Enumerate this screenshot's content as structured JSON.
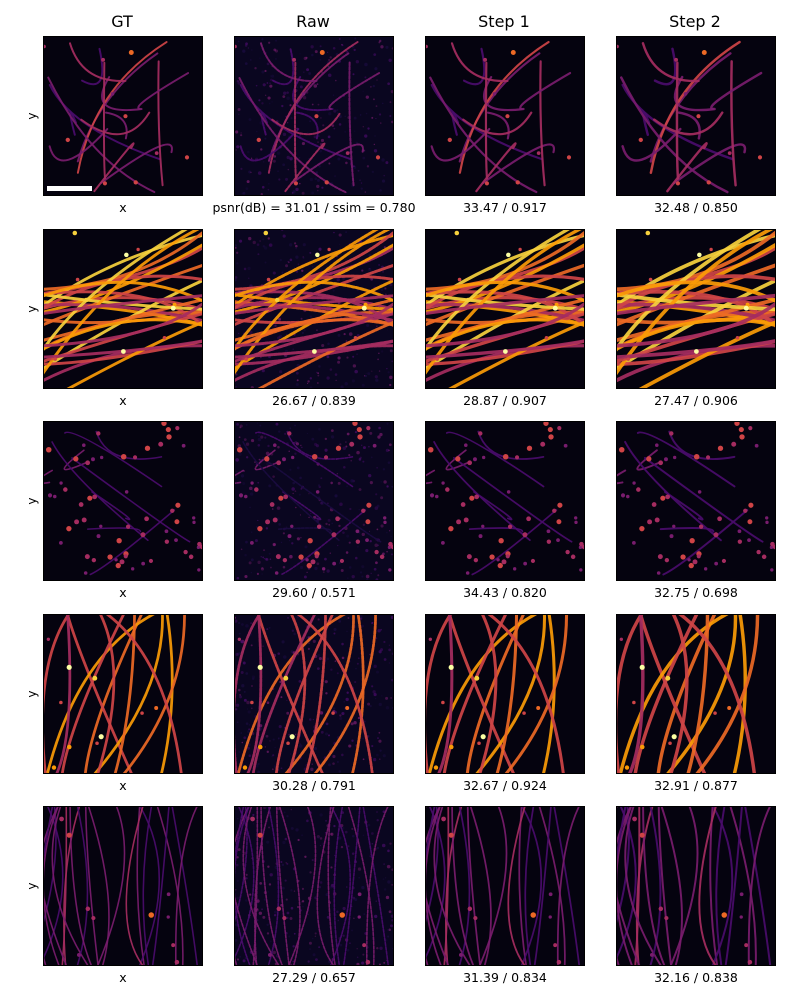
{
  "columns": [
    "GT",
    "Raw",
    "Step 1",
    "Step 2"
  ],
  "axis": {
    "xlabel": "x",
    "ylabel": "y"
  },
  "metric_prefix": "psnr(dB) = ",
  "metric_mid": " / ssim = ",
  "colormap": [
    "#000004",
    "#1b0c41",
    "#4a0c6b",
    "#781c6d",
    "#a52c60",
    "#cf4446",
    "#ed6925",
    "#fb9b06",
    "#f7d13d",
    "#fcffa4"
  ],
  "rows": [
    {
      "structure": "sparse filaments",
      "raw": {
        "psnr": "31.01",
        "ssim": "0.780"
      },
      "step1": {
        "psnr": "33.47",
        "ssim": "0.917"
      },
      "step2": {
        "psnr": "32.48",
        "ssim": "0.850"
      }
    },
    {
      "structure": "dense bright filament bundle",
      "raw": {
        "psnr": "26.67",
        "ssim": "0.839"
      },
      "step1": {
        "psnr": "28.87",
        "ssim": "0.907"
      },
      "step2": {
        "psnr": "27.47",
        "ssim": "0.906"
      }
    },
    {
      "structure": "sparse dim puncta",
      "raw": {
        "psnr": "29.60",
        "ssim": "0.571"
      },
      "step1": {
        "psnr": "34.43",
        "ssim": "0.820"
      },
      "step2": {
        "psnr": "32.75",
        "ssim": "0.698"
      }
    },
    {
      "structure": "curved filaments with dark gap",
      "raw": {
        "psnr": "30.28",
        "ssim": "0.791"
      },
      "step1": {
        "psnr": "32.67",
        "ssim": "0.924"
      },
      "step2": {
        "psnr": "32.91",
        "ssim": "0.877"
      }
    },
    {
      "structure": "dim filament mesh",
      "raw": {
        "psnr": "27.29",
        "ssim": "0.657"
      },
      "step1": {
        "psnr": "31.39",
        "ssim": "0.834"
      },
      "step2": {
        "psnr": "32.16",
        "ssim": "0.838"
      }
    }
  ]
}
